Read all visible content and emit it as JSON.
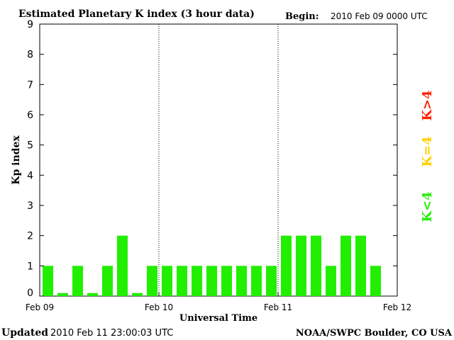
{
  "header": {
    "title": "Estimated Planetary K index (3 hour data)",
    "begin_label": "Begin:",
    "begin_value": "2010 Feb 09 0000 UTC"
  },
  "footer": {
    "updated_label": "Updated",
    "updated_value": "2010 Feb 11 23:00:03 UTC",
    "source": "NOAA/SWPC Boulder, CO USA"
  },
  "legend": [
    {
      "label": "K>4",
      "color": "#ff2000"
    },
    {
      "label": "K=4",
      "color": "#ffd000"
    },
    {
      "label": "K<4",
      "color": "#22ee00"
    }
  ],
  "chart_data": {
    "type": "bar",
    "title": "Estimated Planetary K index (3 hour data)",
    "xlabel": "Universal Time",
    "ylabel": "Kp index",
    "ylim": [
      0,
      9
    ],
    "yticks": [
      "0",
      "1",
      "2",
      "3",
      "4",
      "5",
      "6",
      "7",
      "8",
      "9"
    ],
    "xticks": [
      "Feb 09",
      "Feb 10",
      "Feb 11",
      "Feb 12"
    ],
    "day_separators": [
      "Feb 10",
      "Feb 11"
    ],
    "bar_color": "#22ee00",
    "values": [
      1,
      0.1,
      1,
      0.1,
      1,
      2,
      0.1,
      1,
      1,
      1,
      1,
      1,
      1,
      1,
      1,
      1,
      2,
      2,
      2,
      1,
      2,
      2,
      1
    ]
  }
}
